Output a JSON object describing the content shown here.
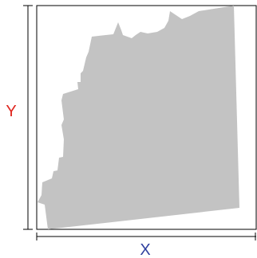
{
  "figure": {
    "x_axis_label": "X",
    "y_axis_label": "Y",
    "colors": {
      "x_label": "#2f3f9e",
      "y_label": "#e0261f",
      "shape_fill": "#c3c3c3",
      "frame": "#000000",
      "dimension_lines": "#000000"
    }
  }
}
